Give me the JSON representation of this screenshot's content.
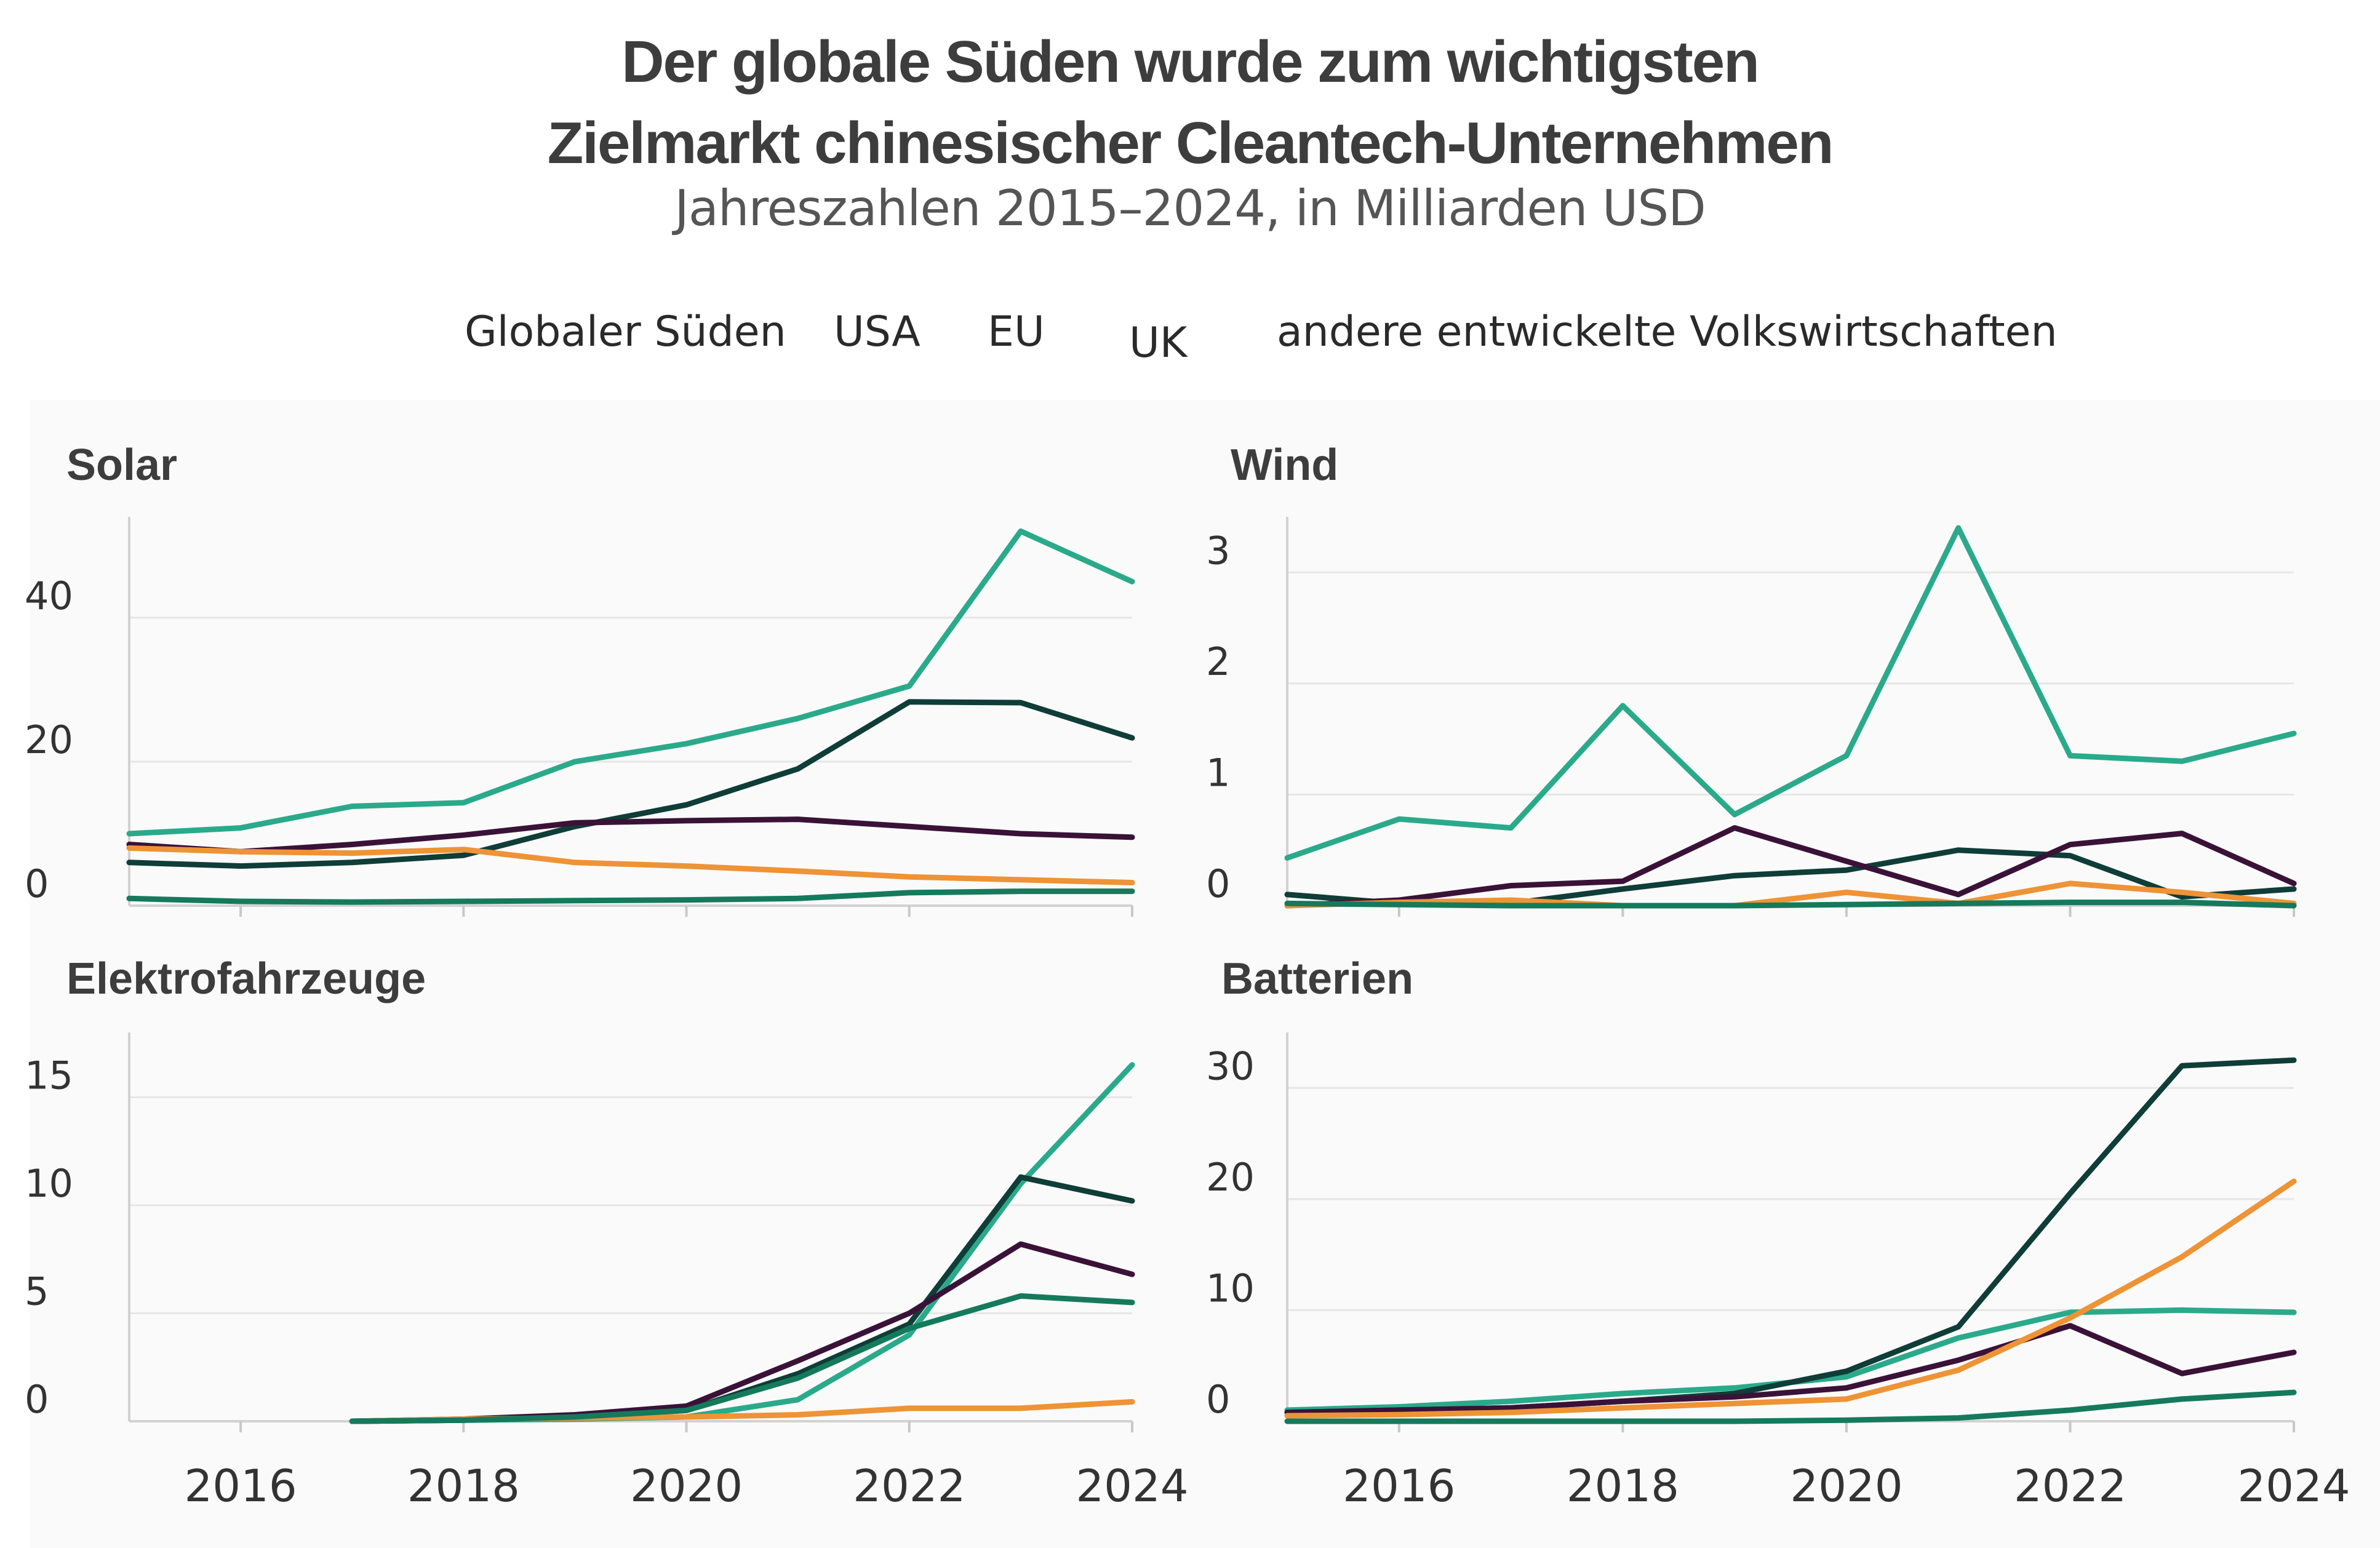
{
  "header": {
    "title_line1": "Der globale Süden wurde zum wichtigsten",
    "title_line2": "Zielmarkt chinesischer Cleantech-Unternehmen",
    "subtitle": "Jahreszahlen 2015–2024, in Milliarden USD"
  },
  "legend": {
    "items": [
      "Globaler Süden",
      "USA",
      "EU",
      "UK",
      "andere entwickelte Volkswirtschaften"
    ]
  },
  "colors": {
    "Globaler Süden": "#2aaa8a",
    "EU": "#0f3d38",
    "USA": "#3a1238",
    "UK": "#ee9336",
    "andere entwickelte Volkswirtschaften": "#157a5c"
  },
  "chart_data": [
    {
      "type": "line",
      "title": "Solar",
      "x": [
        2015,
        2016,
        2017,
        2018,
        2019,
        2020,
        2021,
        2022,
        2023,
        2024
      ],
      "xticks": [
        "2016",
        "2018",
        "2020",
        "2022",
        "2024"
      ],
      "xlim": [
        2015,
        2024
      ],
      "ylim": [
        0,
        54
      ],
      "yticks": [
        "0",
        "20",
        "40"
      ],
      "grid": true,
      "series": [
        {
          "name": "Globaler Süden",
          "values": [
            10,
            10.8,
            13.8,
            14.3,
            20,
            22.5,
            26,
            30.5,
            52,
            45
          ]
        },
        {
          "name": "EU",
          "values": [
            6,
            5.5,
            6,
            7,
            11,
            14,
            19,
            28.3,
            28.2,
            23.3
          ]
        },
        {
          "name": "USA",
          "values": [
            8.5,
            7.5,
            8.5,
            9.8,
            11.5,
            11.8,
            12,
            11,
            10,
            9.5
          ]
        },
        {
          "name": "UK",
          "values": [
            8,
            7.5,
            7.3,
            7.8,
            6,
            5.5,
            4.8,
            4,
            3.6,
            3.2
          ]
        },
        {
          "name": "andere entwickelte Volkswirtschaften",
          "values": [
            1,
            0.6,
            0.5,
            0.6,
            0.7,
            0.8,
            1,
            1.8,
            2,
            2
          ]
        }
      ]
    },
    {
      "type": "line",
      "title": "Wind",
      "x": [
        2015,
        2016,
        2017,
        2018,
        2019,
        2020,
        2021,
        2022,
        2023,
        2024
      ],
      "xticks": [
        "2016",
        "2018",
        "2020",
        "2022",
        "2024"
      ],
      "xlim": [
        2015,
        2024
      ],
      "ylim": [
        0,
        3.5
      ],
      "yticks": [
        "0",
        "1",
        "2",
        "3"
      ],
      "grid": true,
      "series": [
        {
          "name": "Globaler Süden",
          "values": [
            0.43,
            0.78,
            0.7,
            1.8,
            0.82,
            1.35,
            3.4,
            1.35,
            1.3,
            1.55
          ]
        },
        {
          "name": "EU",
          "values": [
            0.1,
            0.02,
            0.02,
            0.15,
            0.27,
            0.32,
            0.5,
            0.45,
            0.08,
            0.15
          ]
        },
        {
          "name": "USA",
          "values": [
            0,
            0.05,
            0.18,
            0.22,
            0.7,
            0.4,
            0.1,
            0.55,
            0.65,
            0.2
          ]
        },
        {
          "name": "UK",
          "values": [
            0,
            0.03,
            0.05,
            0,
            0,
            0.12,
            0.02,
            0.2,
            0.12,
            0.02
          ]
        },
        {
          "name": "andere entwickelte Volkswirtschaften",
          "values": [
            0.02,
            0.01,
            0,
            0,
            0,
            0.01,
            0.02,
            0.03,
            0.03,
            0
          ]
        }
      ]
    },
    {
      "type": "line",
      "title": "Elektrofahrzeuge",
      "x": [
        2017,
        2018,
        2019,
        2020,
        2021,
        2022,
        2023,
        2024
      ],
      "xticks": [
        "2016",
        "2018",
        "2020",
        "2022",
        "2024"
      ],
      "xlim": [
        2015,
        2024
      ],
      "ylim": [
        0,
        18
      ],
      "yticks": [
        "0",
        "5",
        "10",
        "15"
      ],
      "grid": true,
      "series": [
        {
          "name": "Globaler Süden",
          "values": [
            0,
            0.05,
            0.1,
            0.2,
            1,
            4,
            11,
            16.5
          ]
        },
        {
          "name": "EU",
          "values": [
            0,
            0.05,
            0.2,
            0.5,
            2.2,
            4.5,
            11.3,
            10.2
          ]
        },
        {
          "name": "USA",
          "values": [
            0,
            0.1,
            0.3,
            0.7,
            2.8,
            5,
            8.2,
            6.8
          ]
        },
        {
          "name": "UK",
          "values": [
            0,
            0.1,
            0.15,
            0.2,
            0.3,
            0.6,
            0.6,
            0.9
          ]
        },
        {
          "name": "andere entwickelte Volkswirtschaften",
          "values": [
            0,
            0.05,
            0.2,
            0.5,
            2,
            4.3,
            5.8,
            5.5
          ]
        }
      ]
    },
    {
      "type": "line",
      "title": "Batterien",
      "x": [
        2015,
        2016,
        2017,
        2018,
        2019,
        2020,
        2021,
        2022,
        2023,
        2024
      ],
      "xticks": [
        "2016",
        "2018",
        "2020",
        "2022",
        "2024"
      ],
      "xlim": [
        2015,
        2024
      ],
      "ylim": [
        0,
        35
      ],
      "yticks": [
        "0",
        "10",
        "20",
        "30"
      ],
      "grid": true,
      "series": [
        {
          "name": "Globaler Süden",
          "values": [
            1,
            1.3,
            1.8,
            2.5,
            3,
            4,
            7.5,
            9.8,
            10,
            9.8
          ]
        },
        {
          "name": "EU",
          "values": [
            0.8,
            1,
            1.2,
            1.8,
            2.5,
            4.5,
            8.5,
            20.5,
            32,
            32.5
          ]
        },
        {
          "name": "USA",
          "values": [
            0.8,
            1,
            1.2,
            1.8,
            2.2,
            3,
            5.5,
            8.6,
            4.3,
            6.2
          ]
        },
        {
          "name": "UK",
          "values": [
            0.5,
            0.6,
            0.8,
            1.2,
            1.6,
            2,
            4.6,
            9.3,
            14.8,
            21.6
          ]
        },
        {
          "name": "andere entwickelte Volkswirtschaften",
          "values": [
            0,
            0,
            0,
            0,
            0,
            0.1,
            0.3,
            1,
            2,
            2.6
          ]
        }
      ]
    }
  ]
}
